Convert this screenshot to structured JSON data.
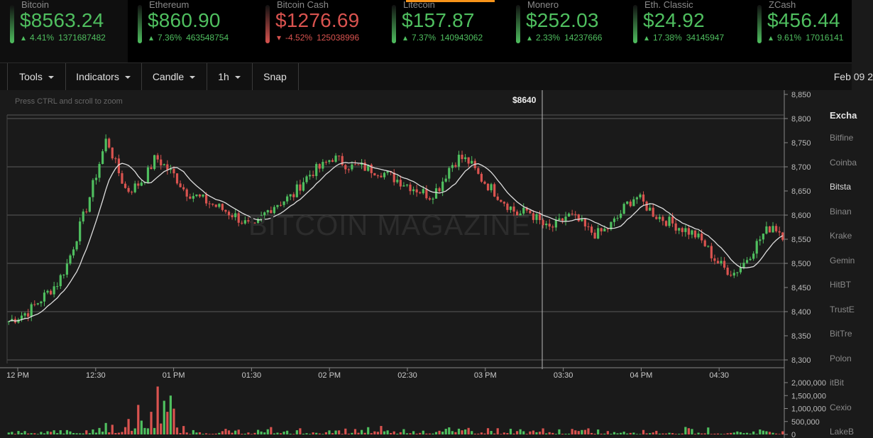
{
  "ticker": [
    {
      "name": "Bitcoin",
      "price": "$8563.24",
      "change": "4.41%",
      "direction": "up",
      "volume": "1371687482",
      "active": true
    },
    {
      "name": "Ethereum",
      "price": "$860.90",
      "change": "7.36%",
      "direction": "up",
      "volume": "463548754"
    },
    {
      "name": "Bitcoin Cash",
      "price": "$1276.69",
      "change": "-4.52%",
      "direction": "down",
      "volume": "125038996"
    },
    {
      "name": "Litecoin",
      "price": "$157.87",
      "change": "7.37%",
      "direction": "up",
      "volume": "140943062"
    },
    {
      "name": "Monero",
      "price": "$252.03",
      "change": "2.33%",
      "direction": "up",
      "volume": "14237666"
    },
    {
      "name": "Eth. Classic",
      "price": "$24.92",
      "change": "17.38%",
      "direction": "up",
      "volume": "34145947"
    },
    {
      "name": "ZCash",
      "price": "$456.44",
      "change": "9.61%",
      "direction": "up",
      "volume": "17016141"
    }
  ],
  "colors": {
    "up": "#4fbf5f",
    "down": "#d9534f",
    "accent": "#f7931a",
    "ma": "#dddddd"
  },
  "toolbar": {
    "tools": "Tools",
    "indicators": "Indicators",
    "candle": "Candle",
    "interval": "1h",
    "snap": "Snap",
    "date": "Feb 09 2"
  },
  "chart": {
    "zoom_hint": "Press CTRL and scroll to zoom",
    "crosshair_label": "$8640",
    "watermark": "BITCOIN MAGAZINE"
  },
  "chart_data": {
    "type": "candlestick",
    "y_ticks": [
      "8,850",
      "8,800",
      "8,750",
      "8,700",
      "8,650",
      "8,600",
      "8,550",
      "8,500",
      "8,450",
      "8,400",
      "8,350",
      "8,300"
    ],
    "ylim": [
      8300,
      8850
    ],
    "x_ticks": [
      "12 PM",
      "12:30",
      "01 PM",
      "01:30",
      "02 PM",
      "02:30",
      "03 PM",
      "03:30",
      "04 PM",
      "04:30"
    ],
    "volume_ticks": [
      "2,000,000",
      "1,500,000",
      "1,000,000",
      "500,000",
      "0"
    ],
    "volume_max": 2000000,
    "price_path": [
      8380,
      8390,
      8400,
      8420,
      8440,
      8460,
      8500,
      8560,
      8620,
      8690,
      8760,
      8700,
      8650,
      8660,
      8680,
      8720,
      8700,
      8680,
      8650,
      8640,
      8630,
      8620,
      8610,
      8600,
      8585,
      8570,
      8600,
      8620,
      8630,
      8640,
      8670,
      8690,
      8700,
      8720,
      8710,
      8700,
      8700,
      8695,
      8690,
      8680,
      8670,
      8660,
      8650,
      8640,
      8660,
      8700,
      8720,
      8710,
      8680,
      8660,
      8640,
      8620,
      8600,
      8610,
      8590,
      8570,
      8580,
      8600,
      8590,
      8570,
      8560,
      8570,
      8590,
      8620,
      8640,
      8620,
      8600,
      8590,
      8580,
      8570,
      8560,
      8540,
      8510,
      8490,
      8480,
      8500,
      8530,
      8560,
      8580,
      8560
    ]
  },
  "sidebar": {
    "title": "Excha",
    "items": [
      {
        "label": "Bitfine"
      },
      {
        "label": "Coinba"
      },
      {
        "label": "Bitsta",
        "highlight": true
      },
      {
        "label": "Binan"
      },
      {
        "label": "Krake"
      },
      {
        "label": "Gemin"
      },
      {
        "label": "HitBT"
      },
      {
        "label": "TrustE"
      },
      {
        "label": "BitTre"
      },
      {
        "label": "Polon"
      },
      {
        "label": "itBit"
      },
      {
        "label": "Cexio"
      },
      {
        "label": "LakeB"
      }
    ]
  }
}
